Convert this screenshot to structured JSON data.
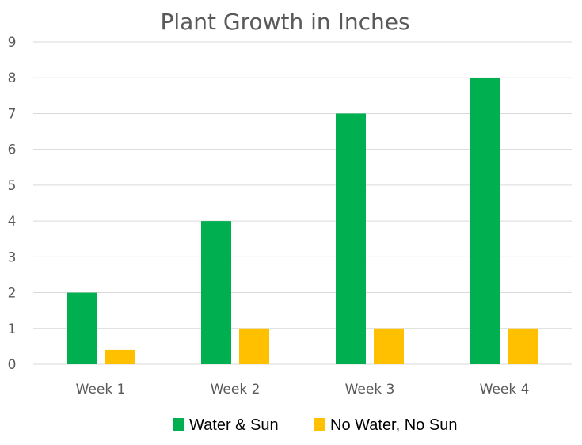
{
  "chart_data": {
    "type": "bar",
    "title": "Plant Growth in Inches",
    "xlabel": "",
    "ylabel": "",
    "categories": [
      "Week 1",
      "Week 2",
      "Week 3",
      "Week 4"
    ],
    "series": [
      {
        "name": "Water & Sun",
        "color": "#00B050",
        "values": [
          2,
          4,
          7,
          8
        ]
      },
      {
        "name": "No Water, No Sun",
        "color": "#FFC000",
        "values": [
          0.4,
          1,
          1,
          1
        ]
      }
    ],
    "ylim": [
      0,
      9
    ],
    "yticks": [
      0,
      1,
      2,
      3,
      4,
      5,
      6,
      7,
      8,
      9
    ],
    "grid": true,
    "legend": "bottom"
  }
}
